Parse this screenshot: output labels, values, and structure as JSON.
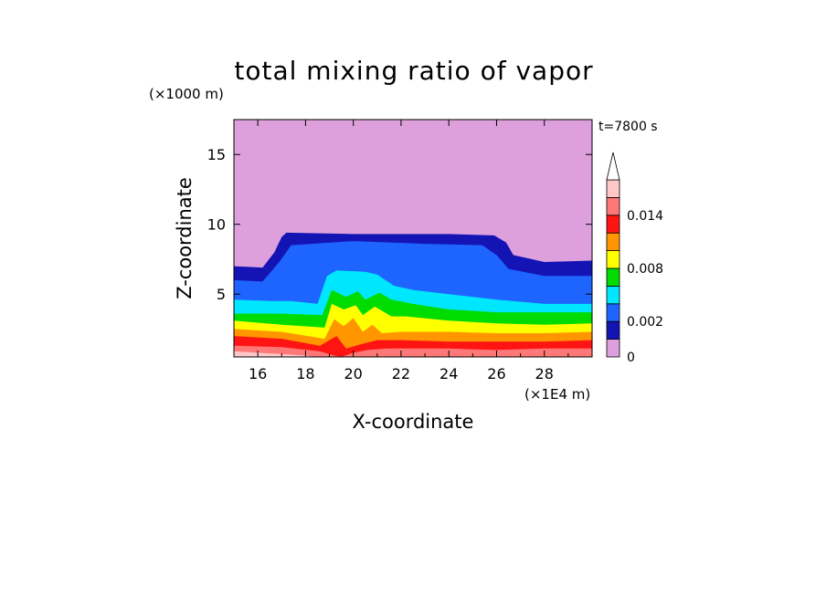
{
  "chart_data": {
    "type": "heatmap",
    "title": "total mixing ratio of vapor",
    "xlabel": "X-coordinate",
    "ylabel": "Z-coordinate",
    "x_unit": "(×1E4 m)",
    "y_unit": "(×1000 m)",
    "time_label": "t=7800 s",
    "xlim": [
      15,
      30
    ],
    "ylim": [
      0.5,
      17.5
    ],
    "xticks": [
      16,
      18,
      20,
      22,
      24,
      26,
      28
    ],
    "yticks": [
      5,
      10,
      15
    ],
    "colorbar": {
      "levels": [
        0,
        0.001,
        0.002,
        0.004,
        0.006,
        0.008,
        0.01,
        0.012,
        0.014,
        0.016
      ],
      "tick_labels": [
        {
          "value": 0,
          "label": "0"
        },
        {
          "value": 0.002,
          "label": "0.002"
        },
        {
          "value": 0.008,
          "label": "0.008"
        },
        {
          "value": 0.014,
          "label": "0.014"
        }
      ],
      "colors": [
        "#dda0dd",
        "#1414b4",
        "#1e64ff",
        "#00e6ff",
        "#00dc00",
        "#ffff00",
        "#ff9600",
        "#ff1414",
        "#ff7878",
        "#ffc8c8"
      ],
      "extend": "max"
    },
    "fields": [
      {
        "level": 0.001,
        "boundary": [
          [
            15,
            7.0
          ],
          [
            16.2,
            6.9
          ],
          [
            16.7,
            8.0
          ],
          [
            17.0,
            9.1
          ],
          [
            17.2,
            9.4
          ],
          [
            20,
            9.3
          ],
          [
            24,
            9.3
          ],
          [
            25.9,
            9.2
          ],
          [
            26.4,
            8.7
          ],
          [
            26.7,
            7.8
          ],
          [
            28,
            7.3
          ],
          [
            30,
            7.4
          ]
        ]
      },
      {
        "level": 0.002,
        "boundary": [
          [
            15,
            6.0
          ],
          [
            16.2,
            5.9
          ],
          [
            16.9,
            7.3
          ],
          [
            17.4,
            8.5
          ],
          [
            20,
            8.8
          ],
          [
            23,
            8.6
          ],
          [
            25.4,
            8.5
          ],
          [
            26.0,
            7.8
          ],
          [
            26.5,
            6.8
          ],
          [
            28,
            6.3
          ],
          [
            30,
            6.3
          ]
        ]
      },
      {
        "level": 0.004,
        "boundary": [
          [
            15,
            4.6
          ],
          [
            16.5,
            4.5
          ],
          [
            17.4,
            4.5
          ],
          [
            18.5,
            4.3
          ],
          [
            18.9,
            6.3
          ],
          [
            19.3,
            6.7
          ],
          [
            20.5,
            6.6
          ],
          [
            21.0,
            6.4
          ],
          [
            21.7,
            5.6
          ],
          [
            22.5,
            5.3
          ],
          [
            24,
            5.0
          ],
          [
            26,
            4.6
          ],
          [
            28,
            4.3
          ],
          [
            30,
            4.3
          ]
        ]
      },
      {
        "level": 0.006,
        "boundary": [
          [
            15,
            3.6
          ],
          [
            17,
            3.6
          ],
          [
            18.7,
            3.5
          ],
          [
            19.1,
            5.3
          ],
          [
            19.7,
            4.8
          ],
          [
            20.2,
            5.2
          ],
          [
            20.5,
            4.6
          ],
          [
            21.1,
            5.1
          ],
          [
            21.6,
            4.6
          ],
          [
            22.5,
            4.3
          ],
          [
            24,
            3.9
          ],
          [
            26,
            3.7
          ],
          [
            28,
            3.7
          ],
          [
            30,
            3.7
          ]
        ]
      },
      {
        "level": 0.008,
        "boundary": [
          [
            15,
            3.1
          ],
          [
            17,
            2.8
          ],
          [
            18.8,
            2.6
          ],
          [
            19.1,
            4.3
          ],
          [
            19.6,
            3.9
          ],
          [
            20.1,
            4.2
          ],
          [
            20.4,
            3.5
          ],
          [
            20.9,
            4.1
          ],
          [
            21.6,
            3.4
          ],
          [
            22.2,
            3.4
          ],
          [
            24,
            3.1
          ],
          [
            26,
            2.9
          ],
          [
            28,
            2.8
          ],
          [
            30,
            2.9
          ]
        ]
      },
      {
        "level": 0.01,
        "boundary": [
          [
            15,
            2.5
          ],
          [
            17,
            2.3
          ],
          [
            18.8,
            1.8
          ],
          [
            19.2,
            3.2
          ],
          [
            19.6,
            2.7
          ],
          [
            20.0,
            3.3
          ],
          [
            20.4,
            2.3
          ],
          [
            20.8,
            2.8
          ],
          [
            21.2,
            2.2
          ],
          [
            22,
            2.3
          ],
          [
            24,
            2.3
          ],
          [
            26,
            2.2
          ],
          [
            28,
            2.2
          ],
          [
            30,
            2.3
          ]
        ]
      },
      {
        "level": 0.012,
        "boundary": [
          [
            15,
            2.0
          ],
          [
            17,
            1.8
          ],
          [
            18.6,
            1.3
          ],
          [
            19.3,
            2.0
          ],
          [
            19.7,
            1.1
          ],
          [
            20.3,
            1.4
          ],
          [
            21,
            1.7
          ],
          [
            22,
            1.7
          ],
          [
            24,
            1.6
          ],
          [
            26,
            1.6
          ],
          [
            28,
            1.6
          ],
          [
            30,
            1.7
          ]
        ]
      },
      {
        "level": 0.014,
        "boundary": [
          [
            15,
            1.3
          ],
          [
            17,
            1.2
          ],
          [
            18.6,
            0.9
          ],
          [
            19.2,
            0.6
          ],
          [
            19.5,
            0.5
          ],
          [
            20.0,
            0.8
          ],
          [
            20.6,
            1.0
          ],
          [
            21.4,
            1.1
          ],
          [
            22,
            1.1
          ],
          [
            24,
            1.1
          ],
          [
            26,
            1.0
          ],
          [
            28,
            1.1
          ],
          [
            30,
            1.1
          ]
        ]
      },
      {
        "level": 0.016,
        "boundary": [
          [
            15,
            0.9
          ],
          [
            16,
            0.8
          ],
          [
            17,
            0.7
          ],
          [
            18,
            0.6
          ],
          [
            18.4,
            0.5
          ],
          [
            30,
            0.5
          ]
        ]
      }
    ]
  }
}
